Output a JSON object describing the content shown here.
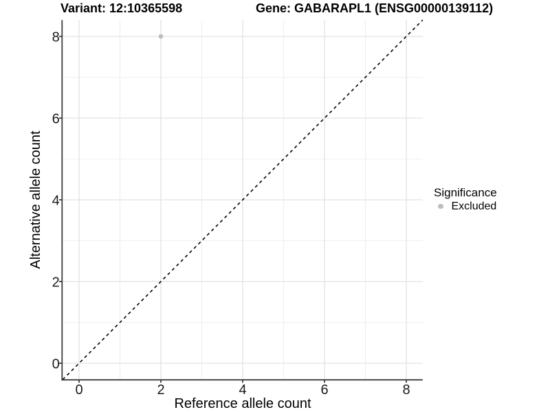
{
  "chart_data": {
    "type": "scatter",
    "title_left": "Variant: 12:10365598",
    "title_right": "Gene: GABARAPL1 (ENSG00000139112)",
    "xlabel": "Reference allele count",
    "ylabel": "Alternative allele count",
    "xlim": [
      -0.4,
      8.4
    ],
    "ylim": [
      -0.4,
      8.4
    ],
    "x_major_ticks": [
      0,
      2,
      4,
      6,
      8
    ],
    "y_major_ticks": [
      0,
      2,
      4,
      6,
      8
    ],
    "x_minor_gridlines": [
      1,
      3,
      5,
      7
    ],
    "y_minor_gridlines": [
      1,
      3,
      5,
      7
    ],
    "grid": "on",
    "legend_position": "right",
    "identity_line": {
      "slope": 1,
      "intercept": 0,
      "style": "dashed",
      "color": "#000000"
    },
    "series": [
      {
        "name": "Excluded",
        "color": "#bdbdbd",
        "points": [
          {
            "x": 2,
            "y": 8
          }
        ]
      }
    ],
    "legend": {
      "title": "Significance",
      "items": [
        {
          "label": "Excluded",
          "color": "#bdbdbd",
          "marker": "circle"
        }
      ]
    },
    "colors": {
      "background": "#ffffff",
      "grid_major": "#e2e2e2",
      "grid_minor": "#efefef",
      "axis_line": "#3c3c3c",
      "tick_mark": "#3c3c3c",
      "tick_label": "#1a1a1a",
      "point": "#bdbdbd"
    }
  }
}
